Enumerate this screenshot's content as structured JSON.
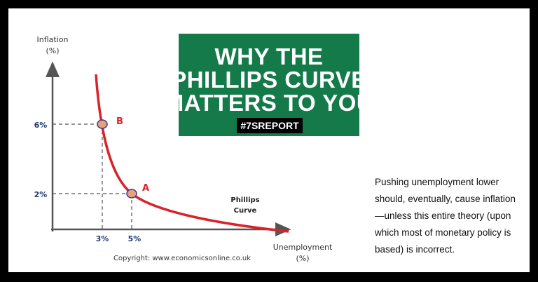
{
  "chart": {
    "y_axis_label": "Inflation",
    "y_axis_unit": "(%)",
    "y_ticks": [
      "6%",
      "2%"
    ],
    "x_axis_label": "Unemployment",
    "x_axis_unit": "(%)",
    "x_ticks": [
      "3%",
      "5%"
    ],
    "points": [
      "B",
      "A"
    ],
    "curve_label": [
      "Phillips",
      "Curve"
    ],
    "copyright": "Copyright: www.economicsonline.co.uk"
  },
  "banner": {
    "lines": [
      "WHY THE",
      "PHILLIPS CURVE",
      "MATTERS TO YOU"
    ],
    "tag": "#7SREPORT"
  },
  "caption": {
    "lines": [
      "Pushing unemployment lower",
      "should, eventually, cause inflation",
      "—unless this entire theory (upon",
      "which most of monetary policy is",
      "based) is incorrect."
    ]
  }
}
